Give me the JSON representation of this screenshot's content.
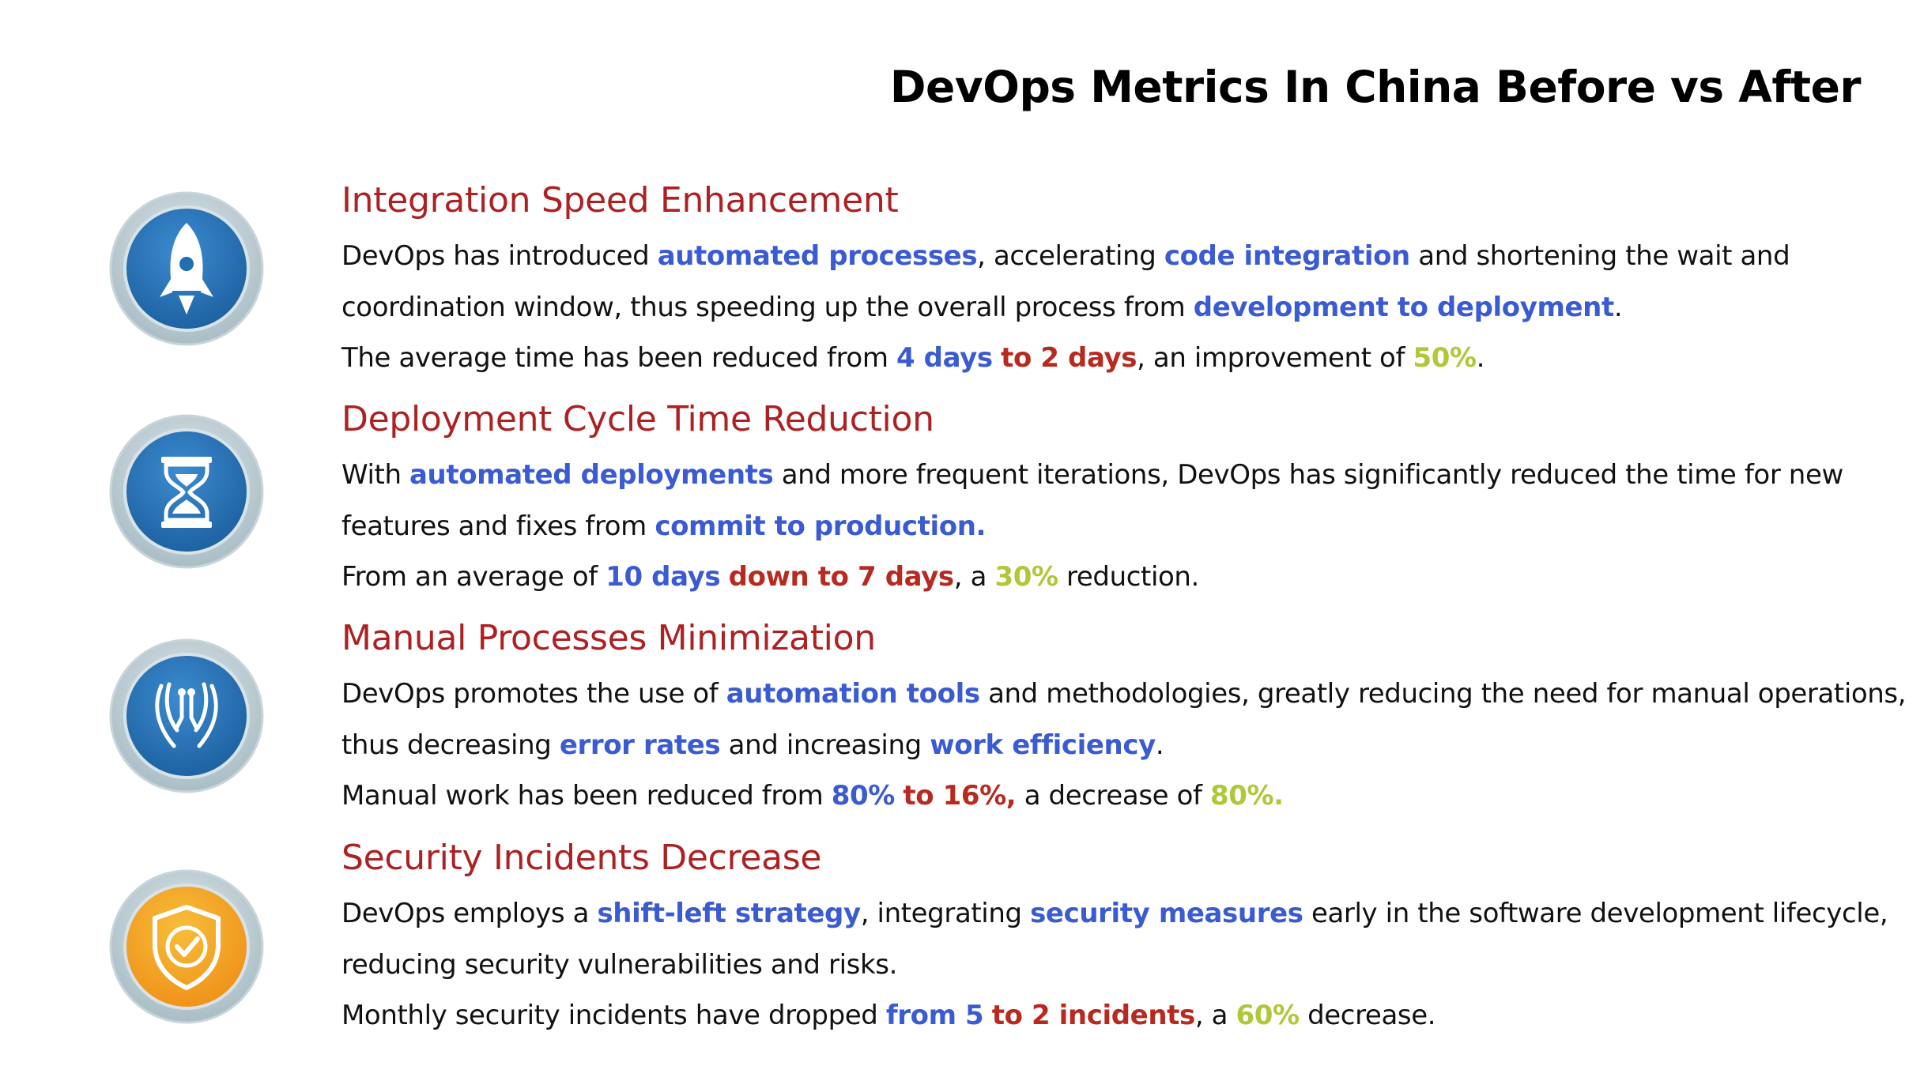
{
  "title": "DevOps Metrics In China Before vs After",
  "colors": {
    "heading": "#ad2123",
    "highlight_blue": "#3a5bd1",
    "highlight_red": "#b72a20",
    "highlight_green": "#aec83a",
    "icon_blue": "#1f6fb2",
    "icon_orange": "#f2a21f"
  },
  "sections": [
    {
      "icon": "rocket-icon",
      "heading": "Integration Speed Enhancement",
      "p1": {
        "a": "DevOps has introduced ",
        "b": "automated processes",
        "c": ", accelerating ",
        "d": "code integration",
        "e": " and shortening the wait and",
        "f": "coordination window, thus speeding up the overall process from ",
        "g": "development to deployment",
        "h": "."
      },
      "p2": {
        "a": "The average time has been reduced from ",
        "b": "4 days",
        "c": "to 2 days",
        "d": ", an improvement of ",
        "e": "50%",
        "f": "."
      }
    },
    {
      "icon": "hourglass-icon",
      "heading": "Deployment Cycle Time Reduction",
      "p1": {
        "a": "With ",
        "b": "automated deployments",
        "c": " and more frequent iterations, DevOps has significantly reduced the time for new",
        "d": "features and fixes from ",
        "e": "commit to production."
      },
      "p2": {
        "a": "From an average of ",
        "b": "10 days",
        "c": "down to 7 days",
        "d": ", a ",
        "e": "30%",
        "f": " reduction."
      }
    },
    {
      "icon": "hands-icon",
      "heading": "Manual Processes Minimization",
      "p1": {
        "a": "DevOps promotes the use of ",
        "b": "automation tools",
        "c": " and methodologies, greatly reducing the need for manual operations,",
        "d": "thus decreasing ",
        "e": "error rates",
        "f": " and increasing ",
        "g": "work efficiency",
        "h": "."
      },
      "p2": {
        "a": "Manual work has been reduced from ",
        "b": "80%",
        "c": "to 16%,",
        "d": " a decrease of ",
        "e": "80%."
      }
    },
    {
      "icon": "shield-check-icon",
      "heading": "Security Incidents Decrease",
      "p1": {
        "a": "DevOps employs a ",
        "b": "shift-left strategy",
        "c": ", integrating ",
        "d": "security measures",
        "e": " early in the software development lifecycle,",
        "f": "reducing security vulnerabilities and risks."
      },
      "p2": {
        "a": "Monthly security incidents have dropped ",
        "b": "from 5",
        "c": "to 2 incidents",
        "d": ", a ",
        "e": "60%",
        "f": " decrease."
      }
    }
  ]
}
